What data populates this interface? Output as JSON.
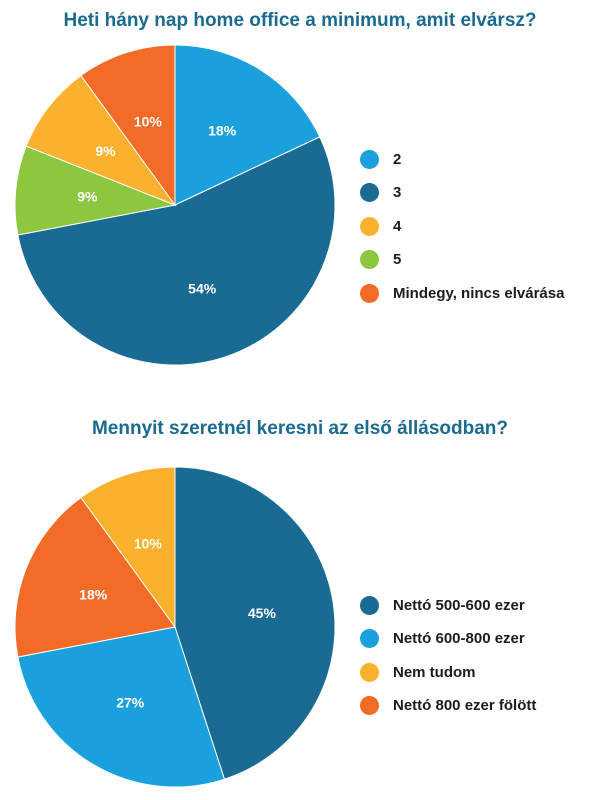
{
  "chart_data": [
    {
      "type": "pie",
      "title": "Heti hány nap home office a minimum, amit elvársz?",
      "categories": [
        "2",
        "3",
        "4",
        "5",
        "Mindegy, nincs elvárása"
      ],
      "values": [
        18,
        54,
        9,
        9,
        10
      ],
      "value_labels": [
        "18%",
        "54%",
        "9%",
        "9%",
        "10%"
      ],
      "slice_order": [
        0,
        1,
        3,
        2,
        4
      ],
      "colors": [
        "#1aa0dc",
        "#1a6b93",
        "#fbb02e",
        "#8dc63f",
        "#f26b27"
      ],
      "legend_position": "right"
    },
    {
      "type": "pie",
      "title": "Mennyit szeretnél keresni az első állásodban?",
      "categories": [
        "Nettó 500-600 ezer",
        "Nettó 600-800 ezer",
        "Nem tudom",
        "Nettó 800 ezer fölött"
      ],
      "values": [
        45,
        27,
        10,
        18
      ],
      "value_labels": [
        "45%",
        "27%",
        "10%",
        "18%"
      ],
      "slice_order": [
        0,
        1,
        3,
        2
      ],
      "colors": [
        "#1a6b93",
        "#1aa0dc",
        "#fbb02e",
        "#f26b27"
      ],
      "legend_position": "right"
    }
  ]
}
